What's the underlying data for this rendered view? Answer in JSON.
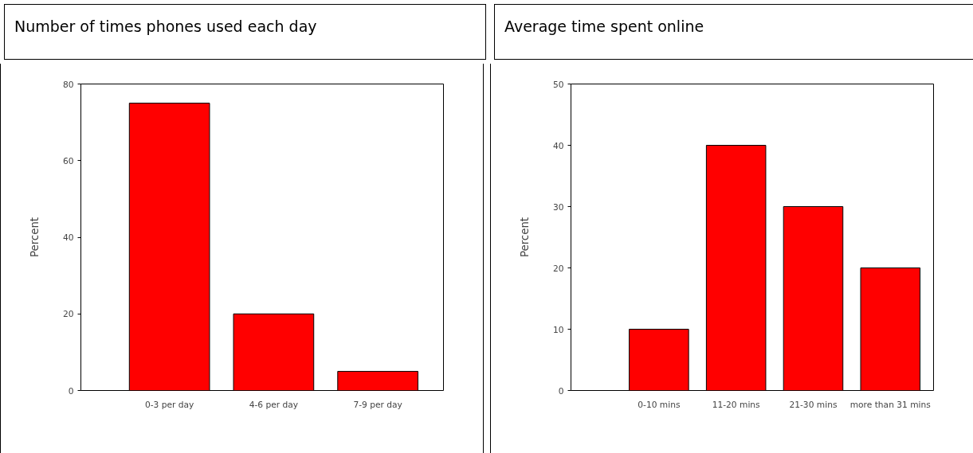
{
  "chart_data": [
    {
      "type": "bar",
      "title": "Number of times phones used each day",
      "ylabel": "Percent",
      "categories": [
        "0-3 per day",
        "4-6 per day",
        "7-9 per day"
      ],
      "values": [
        75,
        20,
        5
      ],
      "color": "#ff0000",
      "ylim": [
        0,
        80
      ],
      "yticks": [
        0,
        20,
        40,
        60,
        80
      ],
      "grid": false
    },
    {
      "type": "bar",
      "title": "Average time spent online",
      "ylabel": "Percent",
      "categories": [
        "0-10 mins",
        "11-20 mins",
        "21-30 mins",
        "more than 31 mins"
      ],
      "values": [
        10,
        40,
        30,
        20
      ],
      "color": "#ff0000",
      "ylim": [
        0,
        50
      ],
      "yticks": [
        0,
        10,
        20,
        30,
        40,
        50
      ],
      "grid": false
    }
  ]
}
